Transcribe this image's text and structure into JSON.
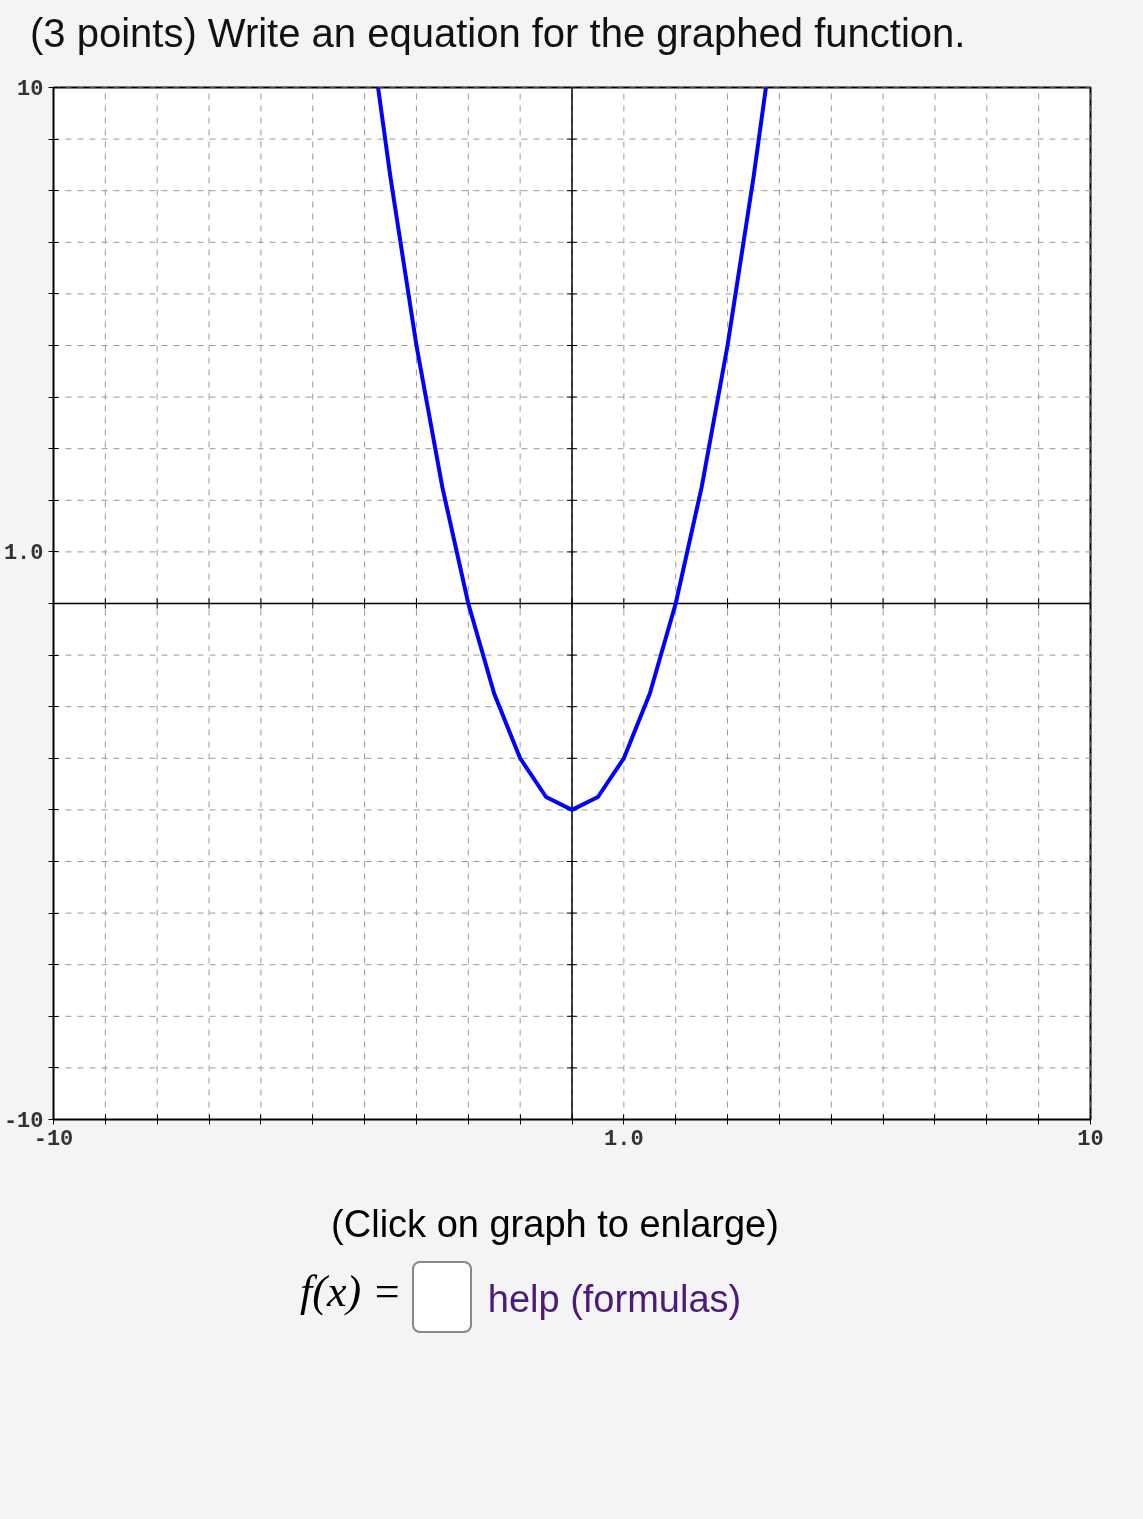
{
  "chart_data": {
    "type": "line",
    "title": "(3 points) Write an equation for the graphed function.",
    "x": [
      -3.74,
      -3.5,
      -3,
      -2.5,
      -2,
      -1.5,
      -1,
      -0.5,
      0,
      0.5,
      1,
      1.5,
      2,
      2.5,
      3,
      3.5,
      3.74
    ],
    "series": [
      {
        "color": "#0000ff",
        "values": [
          10,
          8.25,
          5,
          2.25,
          0,
          -1.75,
          -3,
          -3.75,
          -4,
          -3.75,
          -3,
          -1.75,
          0,
          2.25,
          5,
          8.25,
          10
        ]
      }
    ],
    "xlim": [
      -10,
      10
    ],
    "ylim": [
      -10,
      10
    ],
    "xticks": [
      {
        "value": -10,
        "label": "-10"
      },
      {
        "value": -9,
        "label": null
      },
      {
        "value": -8,
        "label": null
      },
      {
        "value": -7,
        "label": null
      },
      {
        "value": -6,
        "label": null
      },
      {
        "value": -5,
        "label": null
      },
      {
        "value": -4,
        "label": null
      },
      {
        "value": -3,
        "label": null
      },
      {
        "value": -2,
        "label": null
      },
      {
        "value": -1,
        "label": null
      },
      {
        "value": 0,
        "label": null
      },
      {
        "value": 1,
        "label": "1.0"
      },
      {
        "value": 2,
        "label": null
      },
      {
        "value": 3,
        "label": null
      },
      {
        "value": 4,
        "label": null
      },
      {
        "value": 5,
        "label": null
      },
      {
        "value": 6,
        "label": null
      },
      {
        "value": 7,
        "label": null
      },
      {
        "value": 8,
        "label": null
      },
      {
        "value": 9,
        "label": null
      },
      {
        "value": 10,
        "label": "10"
      }
    ],
    "yticks": [
      {
        "value": -10,
        "label": "-10"
      },
      {
        "value": -9,
        "label": null
      },
      {
        "value": -8,
        "label": null
      },
      {
        "value": -7,
        "label": null
      },
      {
        "value": -6,
        "label": null
      },
      {
        "value": -5,
        "label": null
      },
      {
        "value": -4,
        "label": null
      },
      {
        "value": -3,
        "label": null
      },
      {
        "value": -2,
        "label": null
      },
      {
        "value": -1,
        "label": null
      },
      {
        "value": 0,
        "label": null
      },
      {
        "value": 1,
        "label": "1.0"
      },
      {
        "value": 2,
        "label": null
      },
      {
        "value": 3,
        "label": null
      },
      {
        "value": 4,
        "label": null
      },
      {
        "value": 5,
        "label": null
      },
      {
        "value": 6,
        "label": null
      },
      {
        "value": 7,
        "label": null
      },
      {
        "value": 8,
        "label": null
      },
      {
        "value": 9,
        "label": null
      },
      {
        "value": 10,
        "label": "10"
      }
    ],
    "grid": true,
    "line_style": "solid",
    "marker": "none",
    "annotations": [
      "(Click on graph to enlarge)",
      "f(x) =",
      "help (formulas)"
    ]
  }
}
